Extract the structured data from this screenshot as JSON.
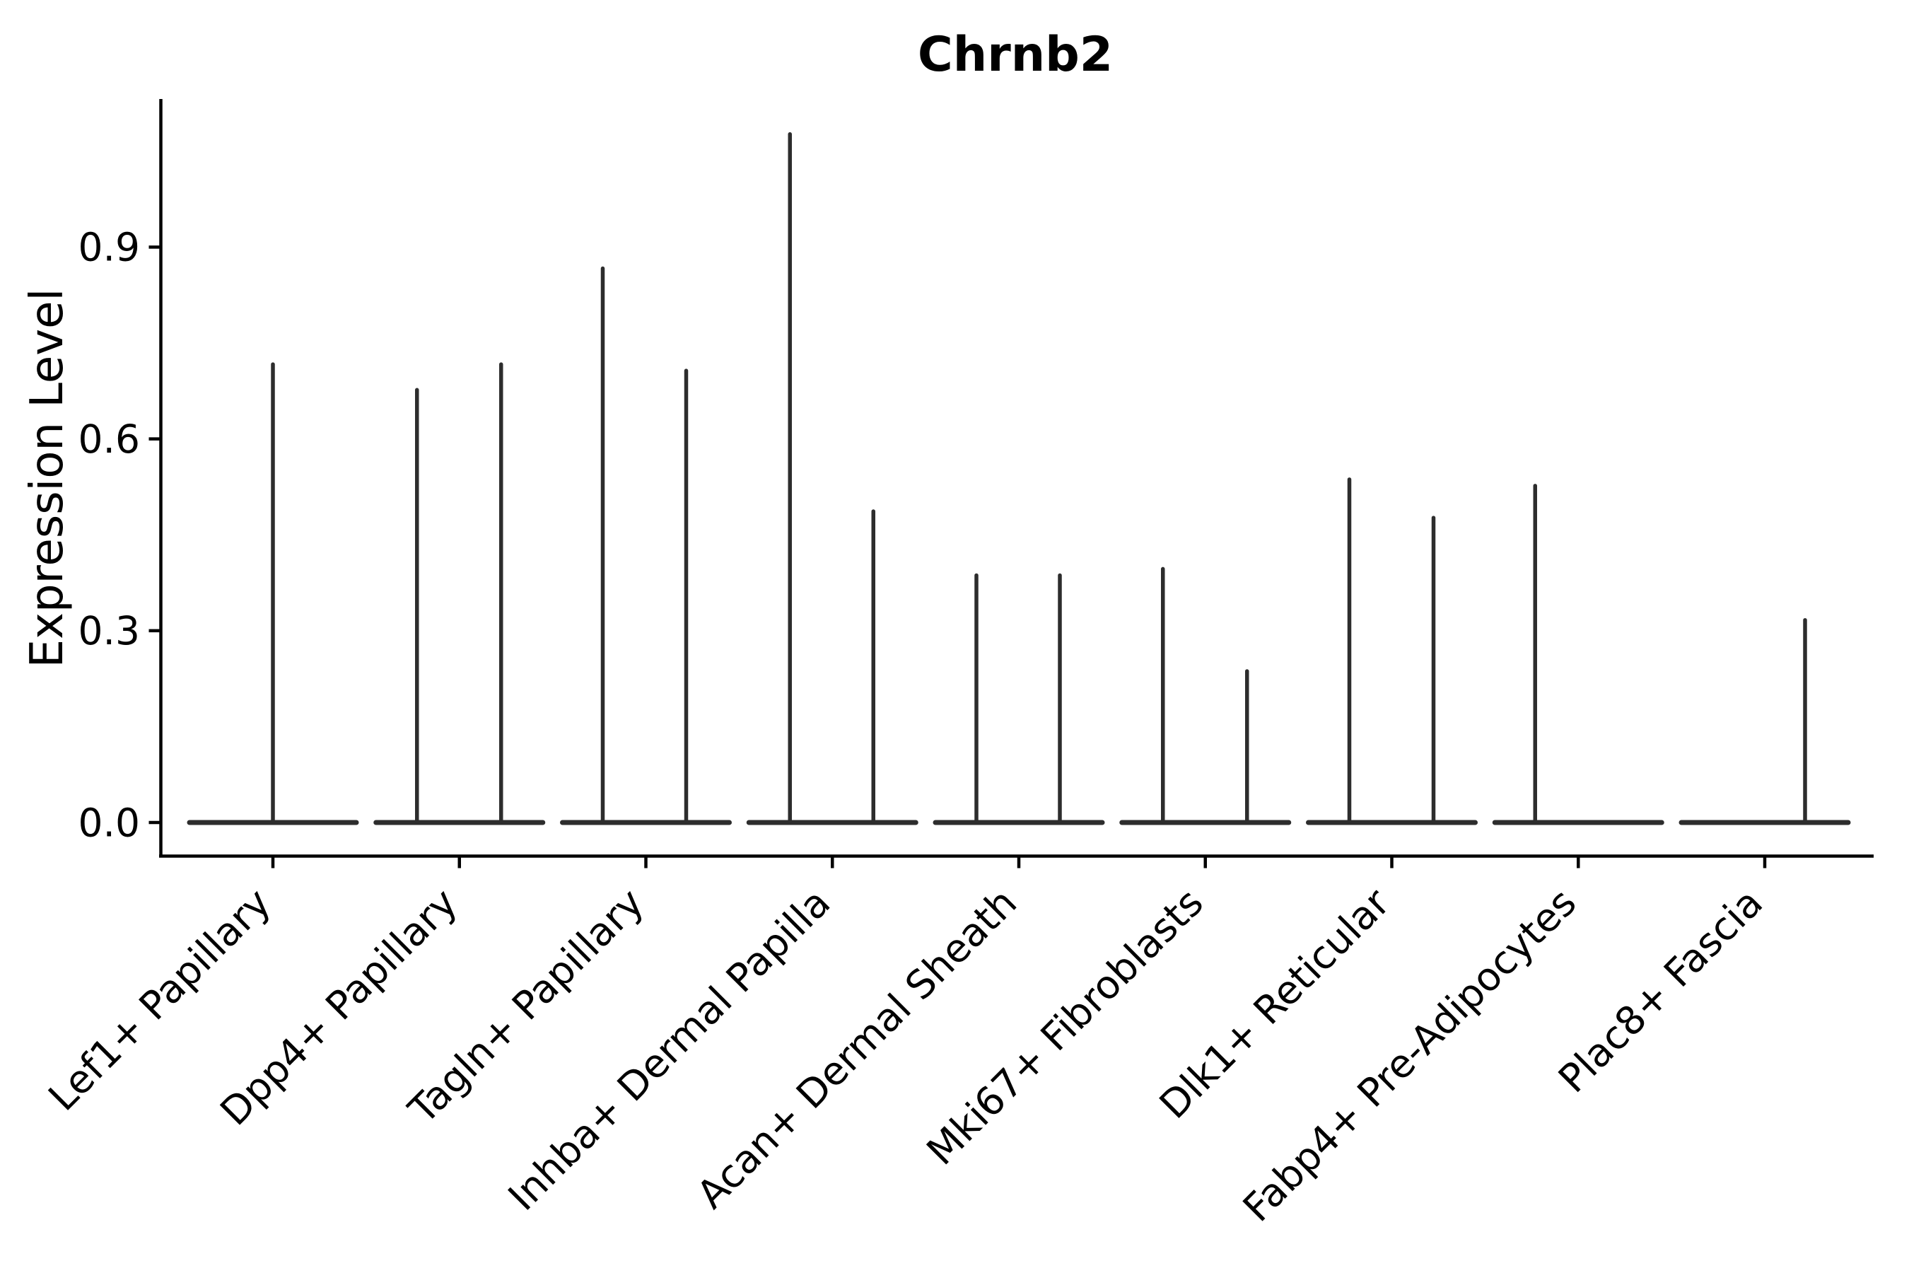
{
  "figure": {
    "title": "Chrnb2",
    "ylabel": "Expression Level"
  },
  "colors": {
    "background": "#ffffff",
    "axis": "#000000",
    "text": "#000000",
    "violin": "#2d2d2d"
  },
  "chart_data": {
    "type": "violin",
    "title": "Chrnb2",
    "xlabel": "",
    "ylabel": "Expression Level",
    "ylim": [
      -0.05,
      1.13
    ],
    "yticks": [
      0.0,
      0.3,
      0.6,
      0.9
    ],
    "ytick_labels": [
      "0.0",
      "0.3",
      "0.6",
      "0.9"
    ],
    "grid": false,
    "legend": false,
    "categories": [
      "Lef1+ Papillary",
      "Dpp4+ Papillary",
      "Tagln+ Papillary",
      "Inhba+ Dermal Papilla",
      "Acan+ Dermal Sheath",
      "Mki67+ Fibroblasts",
      "Dlk1+ Reticular",
      "Fabp4+ Pre-Adipocytes",
      "Plac8+ Fascia"
    ],
    "violins": [
      {
        "category": "Lef1+ Papillary",
        "base_value": 0.0,
        "spikes": [
          {
            "offset": 0,
            "max_expression": 0.72
          }
        ]
      },
      {
        "category": "Dpp4+ Papillary",
        "base_value": 0.0,
        "spikes": [
          {
            "offset": -60,
            "max_expression": 0.68
          },
          {
            "offset": 59,
            "max_expression": 0.72
          }
        ]
      },
      {
        "category": "Tagln+ Papillary",
        "base_value": 0.0,
        "spikes": [
          {
            "offset": -61,
            "max_expression": 0.87
          },
          {
            "offset": 57,
            "max_expression": 0.71
          }
        ]
      },
      {
        "category": "Inhba+ Dermal Papilla",
        "base_value": 0.0,
        "spikes": [
          {
            "offset": -60,
            "max_expression": 1.08
          },
          {
            "offset": 58,
            "max_expression": 0.49
          }
        ]
      },
      {
        "category": "Acan+ Dermal Sheath",
        "base_value": 0.0,
        "spikes": [
          {
            "offset": -60,
            "max_expression": 0.39
          },
          {
            "offset": 58,
            "max_expression": 0.39
          }
        ]
      },
      {
        "category": "Mki67+ Fibroblasts",
        "base_value": 0.0,
        "spikes": [
          {
            "offset": -60,
            "max_expression": 0.4
          },
          {
            "offset": 59,
            "max_expression": 0.24
          }
        ]
      },
      {
        "category": "Dlk1+ Reticular",
        "base_value": 0.0,
        "spikes": [
          {
            "offset": -60,
            "max_expression": 0.54
          },
          {
            "offset": 59,
            "max_expression": 0.48
          }
        ]
      },
      {
        "category": "Fabp4+ Pre-Adipocytes",
        "base_value": 0.0,
        "spikes": [
          {
            "offset": -61,
            "max_expression": 0.53
          }
        ]
      },
      {
        "category": "Plac8+ Fascia",
        "base_value": 0.0,
        "spikes": [
          {
            "offset": 57,
            "max_expression": 0.32
          }
        ]
      }
    ]
  }
}
